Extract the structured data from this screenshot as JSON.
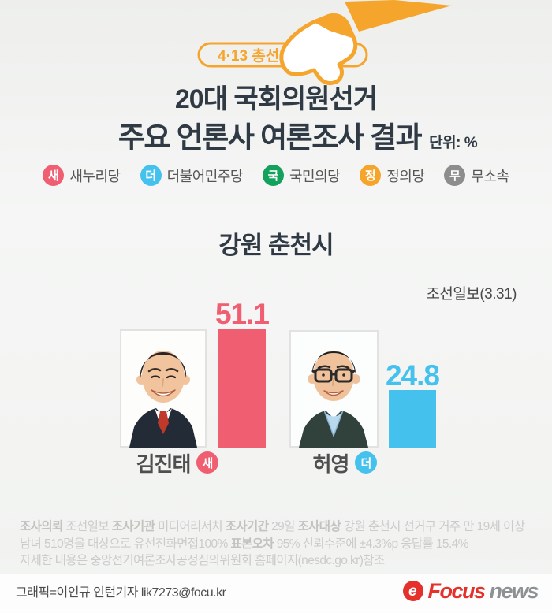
{
  "banner": {
    "label": "4·13 총선",
    "accent_color": "#f6a52c"
  },
  "header": {
    "title_line1": "20대 국회의원선거",
    "title_line2": "주요 언론사 여론조사 결과",
    "unit_label": "단위: %"
  },
  "legend": {
    "items": [
      {
        "short": "새",
        "label": "새누리당",
        "color": "#ef5e71"
      },
      {
        "short": "더",
        "label": "더불어민주당",
        "color": "#45c1ed"
      },
      {
        "short": "국",
        "label": "국민의당",
        "color": "#13a15d"
      },
      {
        "short": "정",
        "label": "정의당",
        "color": "#f6a52c"
      },
      {
        "short": "무",
        "label": "무소속",
        "color": "#8d8d8d"
      }
    ]
  },
  "chart_data": {
    "type": "bar",
    "title": "강원 춘천시",
    "source": "조선일보(3.31)",
    "unit": "%",
    "ylim": [
      0,
      60
    ],
    "grid": false,
    "categories": [
      "김진태",
      "허영"
    ],
    "values": [
      51.1,
      24.8
    ],
    "candidates": [
      {
        "name": "김진태",
        "party_short": "새",
        "party": "새누리당",
        "value": 51.1,
        "value_str": "51.1",
        "color": "#ef5e71"
      },
      {
        "name": "허영",
        "party_short": "더",
        "party": "더불어민주당",
        "value": 24.8,
        "value_str": "24.8",
        "color": "#45c1ed"
      }
    ]
  },
  "survey_note": {
    "lines": [
      [
        {
          "t": "조사의뢰",
          "b": 1
        },
        {
          "t": " 조선일보 "
        },
        {
          "t": "조사기관",
          "b": 1
        },
        {
          "t": " 미디어리서치 "
        },
        {
          "t": "조사기간",
          "b": 1
        },
        {
          "t": " 29일 "
        },
        {
          "t": "조사대상",
          "b": 1
        },
        {
          "t": " 강원 춘천시 선거구 거주 만 19세 이상"
        }
      ],
      [
        {
          "t": "남녀 510명을 대상으로 유선전화면접100% "
        },
        {
          "t": "표본오차",
          "b": 1
        },
        {
          "t": " 95% 신뢰수준에 ±4.3%p 응답률 15.4%"
        }
      ],
      [
        {
          "t": "자세한 내용은 중앙선거여론조사공정심의위원회 홈페이지(nesdc.go.kr)참조"
        }
      ]
    ]
  },
  "credit": {
    "text": "그래픽=이인규 인턴기자 lik7273@focu.kr"
  },
  "logo": {
    "mark": "e",
    "focus": "Focus",
    "news": "news"
  }
}
